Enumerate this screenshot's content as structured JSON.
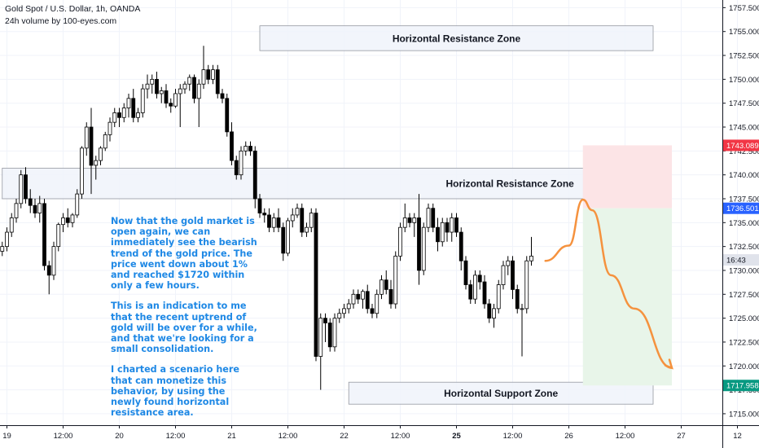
{
  "header": {
    "symbol_line": "Gold Spot / U.S. Dollar, 1h, OANDA",
    "volume_line": "24h volume by 100-eyes.com"
  },
  "annotation": {
    "paragraphs": [
      "Now that the gold market is open again, we can immediately see the bearish trend of the gold price. The price went down about 1% and reached $1720 within only a few hours.",
      "This is an indication to me that the recent uptrend of gold will be over for a while, and that we're looking for a small consolidation.",
      "I charted a scenario here that can monetize this behavior, by using the newly found horizontal resistance area."
    ]
  },
  "colors": {
    "zone_fill": "#f0f3fa",
    "zone_border": "#9598a1",
    "stop_zone": "#fce4e6",
    "target_zone": "#e8f5e9",
    "forecast_line": "#f5923e",
    "candle_up": "#ffffff",
    "candle_down": "#000000",
    "tag_red": "#f23645",
    "tag_blue": "#2962ff",
    "tag_green": "#089981",
    "tag_gray": "#9598a1"
  },
  "chart_data": {
    "type": "candlestick",
    "title": "Gold Spot / U.S. Dollar, 1h, OANDA",
    "y_axis": {
      "ticks": [
        "1757.500",
        "1755.000",
        "1752.500",
        "1750.000",
        "1747.500",
        "1745.000",
        "1742.500",
        "1740.000",
        "1737.500",
        "1735.000",
        "1732.500",
        "1730.000",
        "1727.500",
        "1725.000",
        "1722.500",
        "1720.000",
        "1717.500",
        "1715.000"
      ],
      "range": [
        1713.8,
        1758.3
      ]
    },
    "x_axis": {
      "ticks": [
        "19",
        "12:00",
        "20",
        "12:00",
        "21",
        "12:00",
        "22",
        "12:00",
        "25",
        "12:00",
        "26",
        "12:00",
        "27",
        "12"
      ],
      "bold": [
        "25"
      ]
    },
    "zones": [
      {
        "label": "Horizontal Resistance Zone",
        "from": "21 06:00",
        "to": "26 18:00",
        "low": 1753.0,
        "high": 1755.6
      },
      {
        "label": "Horizontal Resistance Zone",
        "from": "18 23:00",
        "to": "26 18:00",
        "low": 1737.5,
        "high": 1740.7
      },
      {
        "label": "Horizontal Support Zone",
        "from": "22 01:00",
        "to": "26 18:00",
        "low": 1716.0,
        "high": 1718.3
      }
    ],
    "position": {
      "entry": 1736.501,
      "stop": 1743.089,
      "target": 1717.958,
      "from": "26 03:00",
      "to": "26 22:00"
    },
    "price_tags": [
      {
        "label": "1743.089",
        "value": 1743.089,
        "kind": "stop"
      },
      {
        "label": "1736.501",
        "value": 1736.501,
        "kind": "entry"
      },
      {
        "label": "16:43",
        "value": 1731.1,
        "kind": "countdown"
      },
      {
        "label": "1717.958",
        "value": 1717.958,
        "kind": "target"
      }
    ],
    "forecast_path": [
      [
        1731.0,
        1731.0
      ],
      [
        1733.0,
        1732.6
      ],
      [
        1737.0,
        1737.4
      ],
      [
        1737.5,
        1736.3
      ],
      [
        1733.0,
        1729.5
      ],
      [
        1728.0,
        1726.0
      ],
      [
        1721.0,
        1719.8
      ]
    ],
    "candles": [
      [
        1732,
        1733,
        1731.5,
        1732.5
      ],
      [
        1732.5,
        1734.5,
        1732,
        1734
      ],
      [
        1734,
        1736,
        1733.5,
        1735.5
      ],
      [
        1735.5,
        1737.5,
        1735,
        1737
      ],
      [
        1737,
        1740.5,
        1736.5,
        1740
      ],
      [
        1740,
        1740.8,
        1737,
        1737.5
      ],
      [
        1737.5,
        1738.5,
        1736,
        1736.8
      ],
      [
        1736.8,
        1737.5,
        1735.5,
        1736
      ],
      [
        1736,
        1737.8,
        1735,
        1737
      ],
      [
        1737,
        1737.5,
        1730,
        1730.5
      ],
      [
        1730.5,
        1731,
        1727.5,
        1729.5
      ],
      [
        1729.5,
        1733,
        1729,
        1732.5
      ],
      [
        1732.5,
        1735,
        1732,
        1734.8
      ],
      [
        1734.8,
        1736,
        1734,
        1735.5
      ],
      [
        1735.5,
        1736.5,
        1734.5,
        1735
      ],
      [
        1735,
        1736,
        1734.5,
        1735.8
      ],
      [
        1735.8,
        1738.5,
        1735.5,
        1738
      ],
      [
        1738,
        1743,
        1737.5,
        1742.8
      ],
      [
        1742.8,
        1745.5,
        1742,
        1745
      ],
      [
        1745,
        1747,
        1738,
        1741
      ],
      [
        1741,
        1742,
        1739.5,
        1741.5
      ],
      [
        1741.5,
        1743,
        1741,
        1742.8
      ],
      [
        1742.8,
        1744.5,
        1742.5,
        1744.2
      ],
      [
        1744.2,
        1746,
        1743.5,
        1745.5
      ],
      [
        1745.5,
        1747,
        1745,
        1746.5
      ],
      [
        1746.5,
        1747,
        1745,
        1746
      ],
      [
        1746,
        1747.5,
        1745.5,
        1747
      ],
      [
        1747,
        1748.5,
        1746,
        1748
      ],
      [
        1748,
        1749,
        1745.5,
        1746
      ],
      [
        1746,
        1747,
        1745.5,
        1746.5
      ],
      [
        1746.5,
        1749.5,
        1746,
        1749
      ],
      [
        1749,
        1750.5,
        1748,
        1749.5
      ],
      [
        1749.5,
        1750.5,
        1748.5,
        1750
      ],
      [
        1750,
        1750.8,
        1748,
        1748.5
      ],
      [
        1748.5,
        1749.2,
        1747.5,
        1748.8
      ],
      [
        1748.8,
        1749.5,
        1747,
        1747.5
      ],
      [
        1747.5,
        1748,
        1746.5,
        1747.2
      ],
      [
        1747.2,
        1749,
        1747,
        1748.5
      ],
      [
        1748.5,
        1749.5,
        1745,
        1749
      ],
      [
        1749,
        1749.8,
        1748.5,
        1749.5
      ],
      [
        1749.5,
        1750.5,
        1748.8,
        1750.2
      ],
      [
        1750.2,
        1750.5,
        1747.5,
        1748
      ],
      [
        1748,
        1750,
        1745,
        1749.5
      ],
      [
        1749.5,
        1753.5,
        1749,
        1751
      ],
      [
        1751,
        1751.5,
        1749.5,
        1750
      ],
      [
        1750,
        1751.5,
        1749.5,
        1751
      ],
      [
        1751,
        1751.5,
        1748,
        1748.5
      ],
      [
        1748.5,
        1749,
        1747.5,
        1748
      ],
      [
        1748,
        1748.5,
        1744,
        1744.5
      ],
      [
        1744.5,
        1745.5,
        1741,
        1741.5
      ],
      [
        1741.5,
        1742,
        1739.5,
        1740
      ],
      [
        1740,
        1743,
        1739.5,
        1742.5
      ],
      [
        1742.5,
        1743.5,
        1742,
        1743
      ],
      [
        1743,
        1743.5,
        1742,
        1742.5
      ],
      [
        1742.5,
        1743,
        1736.5,
        1737.5
      ],
      [
        1737.5,
        1738,
        1735.5,
        1736
      ],
      [
        1736,
        1736.5,
        1735,
        1735.8
      ],
      [
        1735.8,
        1736.5,
        1734,
        1734.5
      ],
      [
        1734.5,
        1736,
        1734,
        1735.5
      ],
      [
        1735.5,
        1736.5,
        1734,
        1734.5
      ],
      [
        1734.5,
        1735,
        1731,
        1731.8
      ],
      [
        1731.8,
        1735.5,
        1731.5,
        1735.2
      ],
      [
        1735.2,
        1736.5,
        1734.5,
        1735.8
      ],
      [
        1735.8,
        1737,
        1735.5,
        1736.5
      ],
      [
        1736.5,
        1737,
        1733.5,
        1734
      ],
      [
        1734,
        1735,
        1733.5,
        1734.5
      ],
      [
        1734.5,
        1736.5,
        1734,
        1736
      ],
      [
        1736,
        1736.5,
        1720.5,
        1721
      ],
      [
        1721,
        1725.5,
        1717.5,
        1725
      ],
      [
        1725,
        1725.5,
        1722.5,
        1724.5
      ],
      [
        1724.5,
        1725,
        1721.5,
        1722
      ],
      [
        1722,
        1725.5,
        1721.5,
        1725
      ],
      [
        1725,
        1726,
        1724.5,
        1725.5
      ],
      [
        1725.5,
        1726.5,
        1725,
        1726
      ],
      [
        1726,
        1727,
        1725.5,
        1726.5
      ],
      [
        1726.5,
        1728,
        1726,
        1727.5
      ],
      [
        1727.5,
        1728,
        1726.5,
        1727
      ],
      [
        1727,
        1728,
        1726,
        1727.8
      ],
      [
        1727.8,
        1728.5,
        1725.5,
        1726
      ],
      [
        1726,
        1726.5,
        1725,
        1725.5
      ],
      [
        1725.5,
        1728,
        1725,
        1727.5
      ],
      [
        1727.5,
        1729.5,
        1727,
        1729
      ],
      [
        1729,
        1730,
        1727.5,
        1728
      ],
      [
        1728,
        1729,
        1726,
        1726.5
      ],
      [
        1726.5,
        1732,
        1726,
        1731.5
      ],
      [
        1731.5,
        1735,
        1731,
        1734.5
      ],
      [
        1734.5,
        1737,
        1734,
        1735.5
      ],
      [
        1735.5,
        1736,
        1734.5,
        1735
      ],
      [
        1735,
        1736,
        1733.5,
        1735.5
      ],
      [
        1735.5,
        1738,
        1728.5,
        1730
      ],
      [
        1730,
        1735,
        1729.5,
        1734.5
      ],
      [
        1734.5,
        1737,
        1734,
        1736.5
      ],
      [
        1736.5,
        1737,
        1734,
        1734.5
      ],
      [
        1734.5,
        1735.5,
        1732,
        1733
      ],
      [
        1733,
        1735.5,
        1732.5,
        1735
      ],
      [
        1735,
        1735.5,
        1733,
        1734
      ],
      [
        1734,
        1736,
        1733,
        1735.5
      ],
      [
        1735.5,
        1736,
        1733.5,
        1734
      ],
      [
        1734,
        1734.5,
        1730,
        1731
      ],
      [
        1731,
        1731.5,
        1728,
        1728.5
      ],
      [
        1728.5,
        1729,
        1726.5,
        1727
      ],
      [
        1727,
        1730,
        1726.5,
        1729.5
      ],
      [
        1729.5,
        1730,
        1728,
        1728.8
      ],
      [
        1728.8,
        1729.5,
        1726,
        1726.5
      ],
      [
        1726.5,
        1727,
        1724.5,
        1725
      ],
      [
        1725,
        1726.5,
        1724,
        1726
      ],
      [
        1726,
        1729,
        1725.5,
        1728.5
      ],
      [
        1728.5,
        1731,
        1728,
        1730.5
      ],
      [
        1730.5,
        1731.5,
        1729.5,
        1731
      ],
      [
        1731,
        1731.5,
        1727,
        1728
      ],
      [
        1728,
        1728.5,
        1725.5,
        1726
      ],
      [
        1726,
        1726.5,
        1721,
        1726
      ],
      [
        1726,
        1731.5,
        1725.5,
        1731
      ],
      [
        1731,
        1733.5,
        1730.5,
        1731.5
      ]
    ]
  }
}
